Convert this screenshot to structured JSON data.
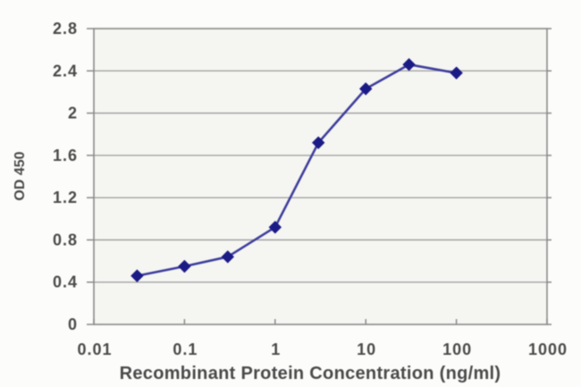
{
  "figure": {
    "background": "#fcfcfa"
  },
  "chart_data": {
    "type": "line",
    "title": "",
    "xlabel": "Recombinant Protein Concentration (ng/ml)",
    "ylabel": "OD 450",
    "x_scale": "log",
    "xlim": [
      0.01,
      1000
    ],
    "ylim": [
      0,
      2.8
    ],
    "x_ticks": [
      0.01,
      0.1,
      1,
      10,
      100,
      1000
    ],
    "x_tick_labels": [
      "0.01",
      "0.1",
      "1",
      "10",
      "100",
      "1000"
    ],
    "y_ticks": [
      0,
      0.4,
      0.8,
      1.2,
      1.6,
      2,
      2.4,
      2.8
    ],
    "y_tick_labels": [
      "0",
      "0.4",
      "0.8",
      "1.2",
      "1.6",
      "2",
      "2.4",
      "2.8"
    ],
    "grid": "horizontal",
    "legend": "none",
    "series": [
      {
        "name": "",
        "marker": "diamond",
        "x": [
          0.03,
          0.1,
          0.3,
          1,
          3,
          10,
          30,
          100
        ],
        "y": [
          0.46,
          0.55,
          0.64,
          0.92,
          1.72,
          2.23,
          2.46,
          2.38
        ]
      }
    ],
    "colors": {
      "line": "#3e3e9d",
      "marker": "#1b1b86",
      "grid": "#9c9c9c",
      "frame": "#8a8a8a",
      "text": "#4a4a4a",
      "plot_background": "#f5f5f2"
    }
  }
}
